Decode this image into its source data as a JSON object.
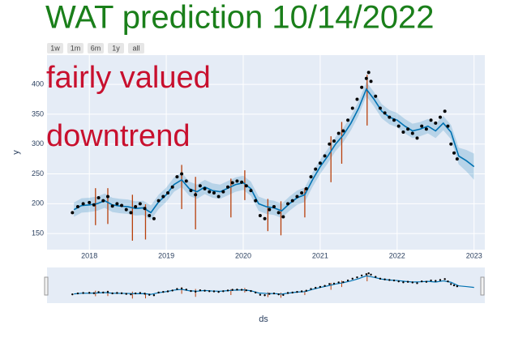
{
  "chart_data": {
    "type": "forecast",
    "title": "WAT prediction 10/14/2022",
    "annotations": [
      "fairly valued",
      "downtrend"
    ],
    "range_buttons": [
      "1w",
      "1m",
      "6m",
      "1y",
      "all"
    ],
    "x_label": "ds",
    "y_label": "y",
    "xlim": [
      2017.45,
      2023.14
    ],
    "xticks": [
      2018,
      2019,
      2020,
      2021,
      2022,
      2023
    ],
    "ylim": [
      123,
      449
    ],
    "yticks": [
      150,
      200,
      250,
      300,
      350,
      400
    ],
    "grid": true,
    "forecast": {
      "color": "#0072b2",
      "band_color": "rgba(0,114,178,0.2)",
      "x": [
        2017.8,
        2017.9,
        2018.0,
        2018.1,
        2018.2,
        2018.3,
        2018.4,
        2018.5,
        2018.6,
        2018.7,
        2018.8,
        2018.9,
        2019.0,
        2019.1,
        2019.2,
        2019.3,
        2019.4,
        2019.5,
        2019.6,
        2019.7,
        2019.8,
        2019.9,
        2020.0,
        2020.1,
        2020.2,
        2020.3,
        2020.4,
        2020.5,
        2020.6,
        2020.7,
        2020.8,
        2020.9,
        2021.0,
        2021.1,
        2021.2,
        2021.3,
        2021.4,
        2021.5,
        2021.6,
        2021.7,
        2021.8,
        2021.9,
        2022.0,
        2022.1,
        2022.2,
        2022.3,
        2022.4,
        2022.5,
        2022.6,
        2022.7,
        2022.8,
        2022.9,
        2023.0
      ],
      "values": [
        190,
        197,
        198,
        200,
        205,
        198,
        196,
        195,
        192,
        193,
        185,
        203,
        215,
        232,
        240,
        225,
        220,
        228,
        222,
        220,
        226,
        232,
        235,
        225,
        200,
        195,
        193,
        188,
        200,
        210,
        215,
        240,
        262,
        280,
        300,
        315,
        335,
        360,
        392,
        375,
        355,
        345,
        340,
        330,
        322,
        325,
        330,
        322,
        335,
        320,
        280,
        272,
        262
      ],
      "lower": [
        178,
        185,
        186,
        188,
        193,
        186,
        184,
        183,
        180,
        181,
        173,
        191,
        203,
        220,
        228,
        213,
        208,
        216,
        210,
        208,
        214,
        220,
        223,
        213,
        188,
        183,
        181,
        176,
        188,
        198,
        203,
        228,
        250,
        268,
        288,
        303,
        323,
        348,
        380,
        363,
        343,
        333,
        328,
        318,
        310,
        313,
        318,
        310,
        323,
        308,
        266,
        254,
        240
      ],
      "upper": [
        202,
        209,
        210,
        212,
        217,
        210,
        208,
        207,
        204,
        205,
        197,
        215,
        227,
        244,
        252,
        237,
        232,
        240,
        234,
        232,
        238,
        244,
        247,
        237,
        212,
        207,
        205,
        200,
        212,
        222,
        227,
        252,
        274,
        292,
        312,
        327,
        347,
        372,
        404,
        387,
        367,
        357,
        352,
        342,
        334,
        337,
        342,
        334,
        347,
        332,
        294,
        290,
        284
      ]
    },
    "actual": {
      "color": "#000000",
      "x": [
        2017.78,
        2017.85,
        2017.92,
        2018.0,
        2018.06,
        2018.12,
        2018.18,
        2018.24,
        2018.3,
        2018.36,
        2018.42,
        2018.48,
        2018.54,
        2018.6,
        2018.66,
        2018.72,
        2018.78,
        2018.84,
        2018.9,
        2018.96,
        2019.02,
        2019.08,
        2019.14,
        2019.2,
        2019.26,
        2019.32,
        2019.38,
        2019.44,
        2019.5,
        2019.56,
        2019.62,
        2019.68,
        2019.74,
        2019.8,
        2019.86,
        2019.92,
        2019.98,
        2020.04,
        2020.1,
        2020.16,
        2020.22,
        2020.28,
        2020.34,
        2020.4,
        2020.46,
        2020.52,
        2020.58,
        2020.64,
        2020.7,
        2020.76,
        2020.82,
        2020.88,
        2020.94,
        2021.0,
        2021.06,
        2021.12,
        2021.18,
        2021.24,
        2021.3,
        2021.36,
        2021.42,
        2021.48,
        2021.54,
        2021.6,
        2021.63,
        2021.66,
        2021.72,
        2021.78,
        2021.84,
        2021.9,
        2021.96,
        2022.02,
        2022.08,
        2022.14,
        2022.2,
        2022.26,
        2022.32,
        2022.38,
        2022.44,
        2022.5,
        2022.56,
        2022.62,
        2022.66,
        2022.7,
        2022.74,
        2022.78
      ],
      "values": [
        185,
        195,
        200,
        202,
        198,
        210,
        205,
        212,
        196,
        200,
        197,
        190,
        185,
        195,
        200,
        192,
        180,
        175,
        205,
        212,
        218,
        228,
        245,
        250,
        238,
        222,
        215,
        230,
        225,
        220,
        218,
        212,
        220,
        228,
        235,
        238,
        236,
        230,
        222,
        205,
        180,
        175,
        190,
        195,
        185,
        178,
        200,
        205,
        212,
        218,
        225,
        245,
        258,
        268,
        280,
        300,
        305,
        318,
        322,
        340,
        360,
        375,
        395,
        410,
        420,
        405,
        380,
        360,
        352,
        345,
        340,
        330,
        320,
        325,
        318,
        310,
        330,
        325,
        340,
        335,
        345,
        355,
        330,
        300,
        285,
        275
      ]
    },
    "changepoints": {
      "color": "#b8400c",
      "x": [
        2018.08,
        2018.24,
        2018.56,
        2018.73,
        2019.2,
        2019.38,
        2019.84,
        2020.02,
        2020.32,
        2020.49,
        2020.8,
        2021.14,
        2021.28,
        2021.61
      ],
      "low": [
        164,
        166,
        138,
        140,
        191,
        157,
        177,
        206,
        154,
        147,
        177,
        236,
        267,
        331
      ],
      "high": [
        226,
        226,
        215,
        199,
        265,
        245,
        242,
        256,
        208,
        204,
        226,
        313,
        337,
        416
      ]
    }
  }
}
